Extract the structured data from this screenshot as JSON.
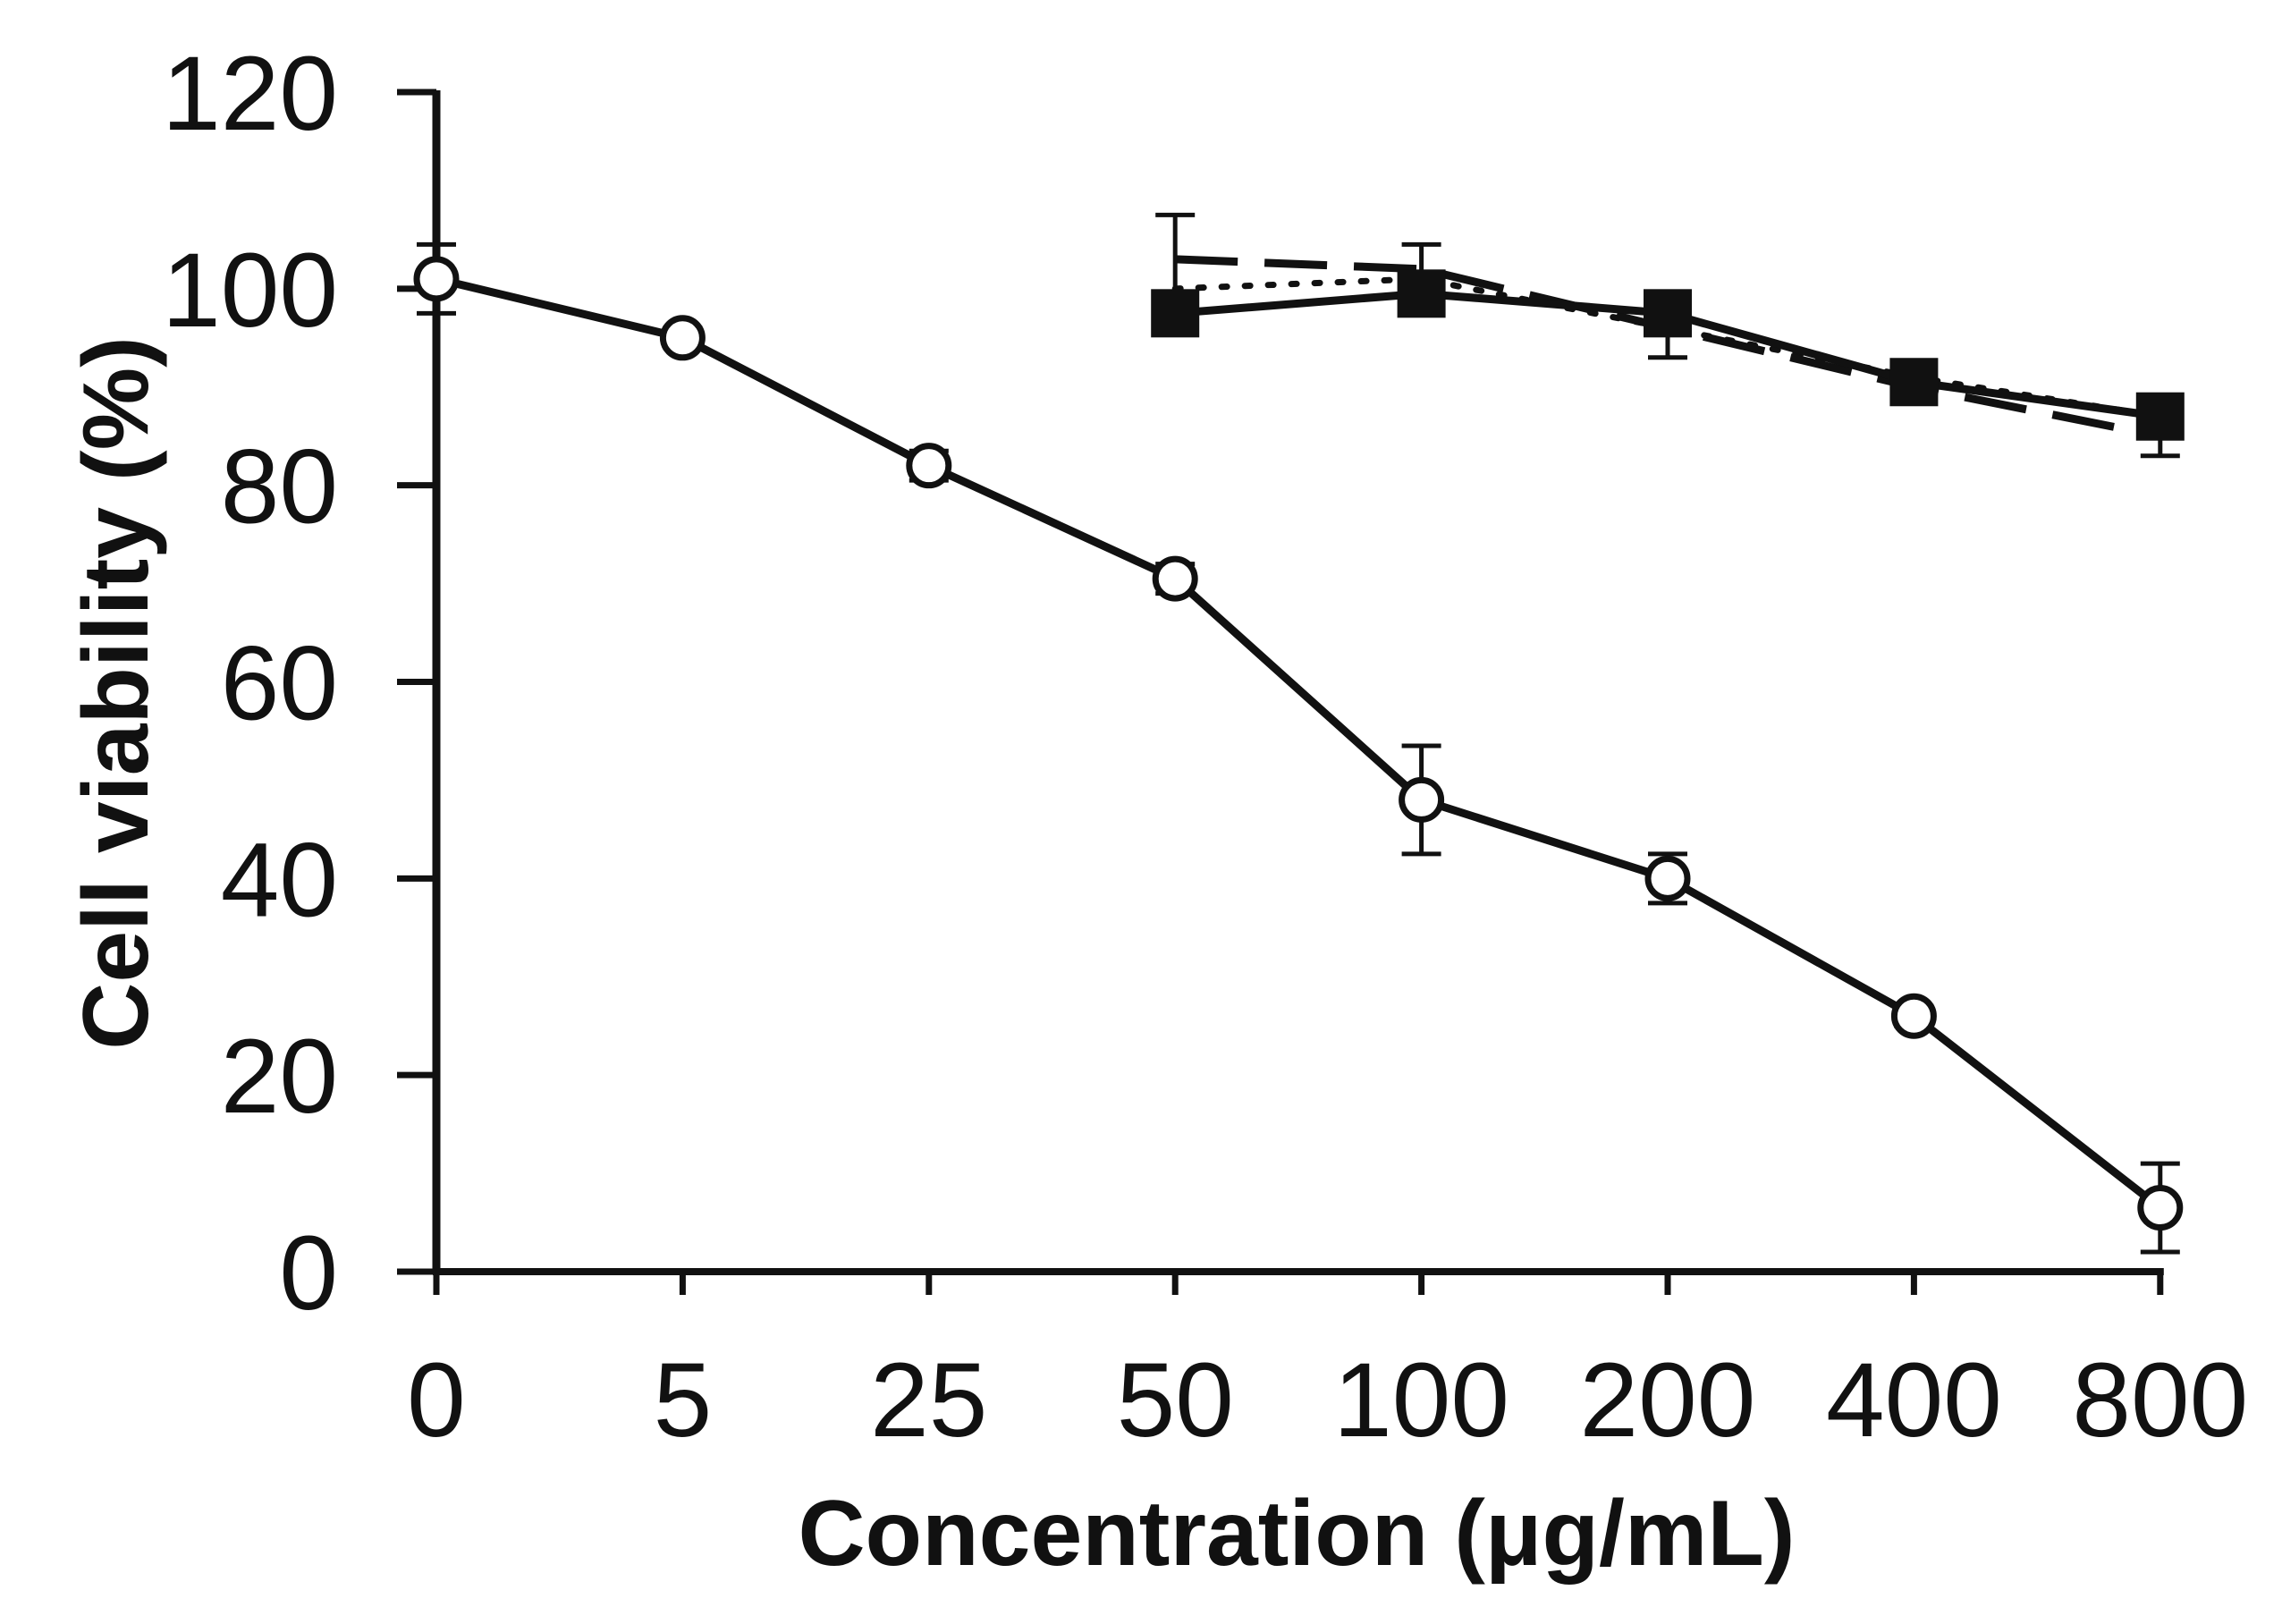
{
  "chart_data": {
    "type": "line",
    "title": "",
    "xlabel": "Concentration (μg/mL)",
    "ylabel": "Cell viability (%)",
    "categories": [
      "0",
      "5",
      "25",
      "50",
      "100",
      "200",
      "400",
      "800"
    ],
    "y_ticks": [
      "0",
      "20",
      "40",
      "60",
      "80",
      "100",
      "120"
    ],
    "ylim": [
      0,
      120
    ],
    "grid": false,
    "legend": "none",
    "series": [
      {
        "name": "open circle series",
        "marker": "open-circle",
        "line_style": "solid",
        "values": [
          101,
          95,
          82,
          70.5,
          48,
          40,
          26,
          6.5
        ],
        "errors": [
          3.5,
          1,
          1.5,
          1.5,
          5.5,
          2.5,
          1,
          4.5
        ]
      },
      {
        "name": "filled square series",
        "marker": "filled-square",
        "line_style": "solid",
        "values": [
          null,
          null,
          null,
          97.5,
          99.5,
          97.5,
          90.5,
          87
        ],
        "errors": [
          null,
          null,
          null,
          0,
          0,
          0,
          0,
          0
        ]
      },
      {
        "name": "dashed series",
        "marker": "none",
        "line_style": "dashed",
        "values": [
          null,
          null,
          null,
          103,
          102,
          96,
          90,
          85
        ],
        "errors": [
          null,
          null,
          null,
          4.5,
          2.5,
          3,
          1,
          2
        ]
      },
      {
        "name": "dotted series",
        "marker": "none",
        "line_style": "dotted",
        "values": [
          null,
          null,
          null,
          100,
          101,
          96,
          91,
          87
        ],
        "errors": [
          null,
          null,
          null,
          0,
          0,
          0,
          0,
          0
        ]
      }
    ]
  }
}
